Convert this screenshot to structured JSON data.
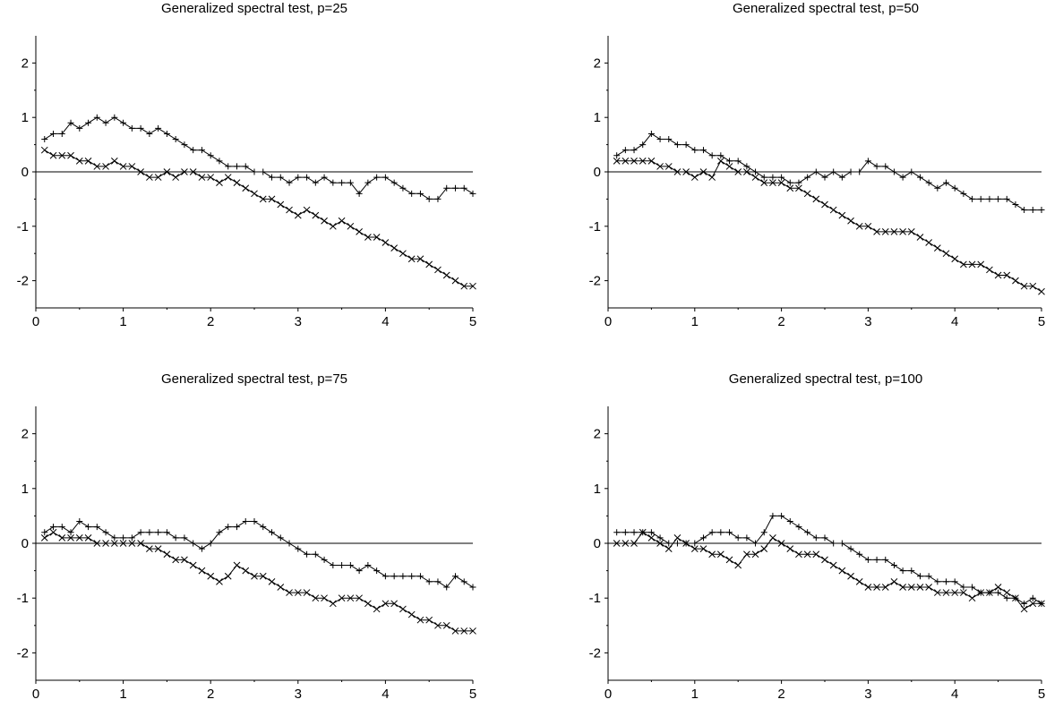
{
  "chart_data": [
    {
      "type": "line",
      "title": "Generalized spectral test, p=25",
      "xlabel": "",
      "ylabel": "",
      "xlim": [
        0,
        5
      ],
      "ylim": [
        -2.5,
        2.5
      ],
      "xticks": [
        "0",
        "1",
        "2",
        "3",
        "4",
        "5"
      ],
      "yticks": [
        "-2",
        "-1",
        "0",
        "1",
        "2"
      ],
      "reference_line_y": 0,
      "grid": false,
      "series": [
        {
          "marker": "plus",
          "x": [
            0.1,
            0.2,
            0.3,
            0.4,
            0.5,
            0.6,
            0.7,
            0.8,
            0.9,
            1.0,
            1.1,
            1.2,
            1.3,
            1.4,
            1.5,
            1.6,
            1.7,
            1.8,
            1.9,
            2.0,
            2.1,
            2.2,
            2.3,
            2.4,
            2.5,
            2.6,
            2.7,
            2.8,
            2.9,
            3.0,
            3.1,
            3.2,
            3.3,
            3.4,
            3.5,
            3.6,
            3.7,
            3.8,
            3.9,
            4.0,
            4.1,
            4.2,
            4.3,
            4.4,
            4.5,
            4.6,
            4.7,
            4.8,
            4.9,
            5.0
          ],
          "y": [
            0.6,
            0.7,
            0.7,
            0.9,
            0.8,
            0.9,
            1.0,
            0.9,
            1.0,
            0.9,
            0.8,
            0.8,
            0.7,
            0.8,
            0.7,
            0.6,
            0.5,
            0.4,
            0.4,
            0.3,
            0.2,
            0.1,
            0.1,
            0.1,
            0.0,
            0.0,
            -0.1,
            -0.1,
            -0.2,
            -0.1,
            -0.1,
            -0.2,
            -0.1,
            -0.2,
            -0.2,
            -0.2,
            -0.4,
            -0.2,
            -0.1,
            -0.1,
            -0.2,
            -0.3,
            -0.4,
            -0.4,
            -0.5,
            -0.5,
            -0.3,
            -0.3,
            -0.3,
            -0.4
          ]
        },
        {
          "marker": "cross",
          "x": [
            0.1,
            0.2,
            0.3,
            0.4,
            0.5,
            0.6,
            0.7,
            0.8,
            0.9,
            1.0,
            1.1,
            1.2,
            1.3,
            1.4,
            1.5,
            1.6,
            1.7,
            1.8,
            1.9,
            2.0,
            2.1,
            2.2,
            2.3,
            2.4,
            2.5,
            2.6,
            2.7,
            2.8,
            2.9,
            3.0,
            3.1,
            3.2,
            3.3,
            3.4,
            3.5,
            3.6,
            3.7,
            3.8,
            3.9,
            4.0,
            4.1,
            4.2,
            4.3,
            4.4,
            4.5,
            4.6,
            4.7,
            4.8,
            4.9,
            5.0
          ],
          "y": [
            0.4,
            0.3,
            0.3,
            0.3,
            0.2,
            0.2,
            0.1,
            0.1,
            0.2,
            0.1,
            0.1,
            0.0,
            -0.1,
            -0.1,
            0.0,
            -0.1,
            0.0,
            0.0,
            -0.1,
            -0.1,
            -0.2,
            -0.1,
            -0.2,
            -0.3,
            -0.4,
            -0.5,
            -0.5,
            -0.6,
            -0.7,
            -0.8,
            -0.7,
            -0.8,
            -0.9,
            -1.0,
            -0.9,
            -1.0,
            -1.1,
            -1.2,
            -1.2,
            -1.3,
            -1.4,
            -1.5,
            -1.6,
            -1.6,
            -1.7,
            -1.8,
            -1.9,
            -2.0,
            -2.1,
            -2.1
          ]
        }
      ]
    },
    {
      "type": "line",
      "title": "Generalized spectral test, p=50",
      "xlabel": "",
      "ylabel": "",
      "xlim": [
        0,
        5
      ],
      "ylim": [
        -2.5,
        2.5
      ],
      "xticks": [
        "0",
        "1",
        "2",
        "3",
        "4",
        "5"
      ],
      "yticks": [
        "-2",
        "-1",
        "0",
        "1",
        "2"
      ],
      "reference_line_y": 0,
      "grid": false,
      "series": [
        {
          "marker": "plus",
          "x": [
            0.1,
            0.2,
            0.3,
            0.4,
            0.5,
            0.6,
            0.7,
            0.8,
            0.9,
            1.0,
            1.1,
            1.2,
            1.3,
            1.4,
            1.5,
            1.6,
            1.7,
            1.8,
            1.9,
            2.0,
            2.1,
            2.2,
            2.3,
            2.4,
            2.5,
            2.6,
            2.7,
            2.8,
            2.9,
            3.0,
            3.1,
            3.2,
            3.3,
            3.4,
            3.5,
            3.6,
            3.7,
            3.8,
            3.9,
            4.0,
            4.1,
            4.2,
            4.3,
            4.4,
            4.5,
            4.6,
            4.7,
            4.8,
            4.9,
            5.0
          ],
          "y": [
            0.3,
            0.4,
            0.4,
            0.5,
            0.7,
            0.6,
            0.6,
            0.5,
            0.5,
            0.4,
            0.4,
            0.3,
            0.3,
            0.2,
            0.2,
            0.1,
            0.0,
            -0.1,
            -0.1,
            -0.1,
            -0.2,
            -0.2,
            -0.1,
            0.0,
            -0.1,
            0.0,
            -0.1,
            0.0,
            0.0,
            0.2,
            0.1,
            0.1,
            0.0,
            -0.1,
            0.0,
            -0.1,
            -0.2,
            -0.3,
            -0.2,
            -0.3,
            -0.4,
            -0.5,
            -0.5,
            -0.5,
            -0.5,
            -0.5,
            -0.6,
            -0.7,
            -0.7,
            -0.7
          ]
        },
        {
          "marker": "cross",
          "x": [
            0.1,
            0.2,
            0.3,
            0.4,
            0.5,
            0.6,
            0.7,
            0.8,
            0.9,
            1.0,
            1.1,
            1.2,
            1.3,
            1.4,
            1.5,
            1.6,
            1.7,
            1.8,
            1.9,
            2.0,
            2.1,
            2.2,
            2.3,
            2.4,
            2.5,
            2.6,
            2.7,
            2.8,
            2.9,
            3.0,
            3.1,
            3.2,
            3.3,
            3.4,
            3.5,
            3.6,
            3.7,
            3.8,
            3.9,
            4.0,
            4.1,
            4.2,
            4.3,
            4.4,
            4.5,
            4.6,
            4.7,
            4.8,
            4.9,
            5.0
          ],
          "y": [
            0.2,
            0.2,
            0.2,
            0.2,
            0.2,
            0.1,
            0.1,
            0.0,
            0.0,
            -0.1,
            0.0,
            -0.1,
            0.2,
            0.1,
            0.0,
            0.0,
            -0.1,
            -0.2,
            -0.2,
            -0.2,
            -0.3,
            -0.3,
            -0.4,
            -0.5,
            -0.6,
            -0.7,
            -0.8,
            -0.9,
            -1.0,
            -1.0,
            -1.1,
            -1.1,
            -1.1,
            -1.1,
            -1.1,
            -1.2,
            -1.3,
            -1.4,
            -1.5,
            -1.6,
            -1.7,
            -1.7,
            -1.7,
            -1.8,
            -1.9,
            -1.9,
            -2.0,
            -2.1,
            -2.1,
            -2.2
          ]
        }
      ]
    },
    {
      "type": "line",
      "title": "Generalized spectral test, p=75",
      "xlabel": "",
      "ylabel": "",
      "xlim": [
        0,
        5
      ],
      "ylim": [
        -2.5,
        2.5
      ],
      "xticks": [
        "0",
        "1",
        "2",
        "3",
        "4",
        "5"
      ],
      "yticks": [
        "-2",
        "-1",
        "0",
        "1",
        "2"
      ],
      "reference_line_y": 0,
      "grid": false,
      "series": [
        {
          "marker": "plus",
          "x": [
            0.1,
            0.2,
            0.3,
            0.4,
            0.5,
            0.6,
            0.7,
            0.8,
            0.9,
            1.0,
            1.1,
            1.2,
            1.3,
            1.4,
            1.5,
            1.6,
            1.7,
            1.8,
            1.9,
            2.0,
            2.1,
            2.2,
            2.3,
            2.4,
            2.5,
            2.6,
            2.7,
            2.8,
            2.9,
            3.0,
            3.1,
            3.2,
            3.3,
            3.4,
            3.5,
            3.6,
            3.7,
            3.8,
            3.9,
            4.0,
            4.1,
            4.2,
            4.3,
            4.4,
            4.5,
            4.6,
            4.7,
            4.8,
            4.9,
            5.0
          ],
          "y": [
            0.2,
            0.3,
            0.3,
            0.2,
            0.4,
            0.3,
            0.3,
            0.2,
            0.1,
            0.1,
            0.1,
            0.2,
            0.2,
            0.2,
            0.2,
            0.1,
            0.1,
            0.0,
            -0.1,
            0.0,
            0.2,
            0.3,
            0.3,
            0.4,
            0.4,
            0.3,
            0.2,
            0.1,
            0.0,
            -0.1,
            -0.2,
            -0.2,
            -0.3,
            -0.4,
            -0.4,
            -0.4,
            -0.5,
            -0.4,
            -0.5,
            -0.6,
            -0.6,
            -0.6,
            -0.6,
            -0.6,
            -0.7,
            -0.7,
            -0.8,
            -0.6,
            -0.7,
            -0.8
          ]
        },
        {
          "marker": "cross",
          "x": [
            0.1,
            0.2,
            0.3,
            0.4,
            0.5,
            0.6,
            0.7,
            0.8,
            0.9,
            1.0,
            1.1,
            1.2,
            1.3,
            1.4,
            1.5,
            1.6,
            1.7,
            1.8,
            1.9,
            2.0,
            2.1,
            2.2,
            2.3,
            2.4,
            2.5,
            2.6,
            2.7,
            2.8,
            2.9,
            3.0,
            3.1,
            3.2,
            3.3,
            3.4,
            3.5,
            3.6,
            3.7,
            3.8,
            3.9,
            4.0,
            4.1,
            4.2,
            4.3,
            4.4,
            4.5,
            4.6,
            4.7,
            4.8,
            4.9,
            5.0
          ],
          "y": [
            0.1,
            0.2,
            0.1,
            0.1,
            0.1,
            0.1,
            0.0,
            0.0,
            0.0,
            0.0,
            0.0,
            0.0,
            -0.1,
            -0.1,
            -0.2,
            -0.3,
            -0.3,
            -0.4,
            -0.5,
            -0.6,
            -0.7,
            -0.6,
            -0.4,
            -0.5,
            -0.6,
            -0.6,
            -0.7,
            -0.8,
            -0.9,
            -0.9,
            -0.9,
            -1.0,
            -1.0,
            -1.1,
            -1.0,
            -1.0,
            -1.0,
            -1.1,
            -1.2,
            -1.1,
            -1.1,
            -1.2,
            -1.3,
            -1.4,
            -1.4,
            -1.5,
            -1.5,
            -1.6,
            -1.6,
            -1.6
          ]
        }
      ]
    },
    {
      "type": "line",
      "title": "Generalized spectral test, p=100",
      "xlabel": "",
      "ylabel": "",
      "xlim": [
        0,
        5
      ],
      "ylim": [
        -2.5,
        2.5
      ],
      "xticks": [
        "0",
        "1",
        "2",
        "3",
        "4",
        "5"
      ],
      "yticks": [
        "-2",
        "-1",
        "0",
        "1",
        "2"
      ],
      "reference_line_y": 0,
      "grid": false,
      "series": [
        {
          "marker": "plus",
          "x": [
            0.1,
            0.2,
            0.3,
            0.4,
            0.5,
            0.6,
            0.7,
            0.8,
            0.9,
            1.0,
            1.1,
            1.2,
            1.3,
            1.4,
            1.5,
            1.6,
            1.7,
            1.8,
            1.9,
            2.0,
            2.1,
            2.2,
            2.3,
            2.4,
            2.5,
            2.6,
            2.7,
            2.8,
            2.9,
            3.0,
            3.1,
            3.2,
            3.3,
            3.4,
            3.5,
            3.6,
            3.7,
            3.8,
            3.9,
            4.0,
            4.1,
            4.2,
            4.3,
            4.4,
            4.5,
            4.6,
            4.7,
            4.8,
            4.9,
            5.0
          ],
          "y": [
            0.2,
            0.2,
            0.2,
            0.2,
            0.2,
            0.1,
            0.0,
            0.0,
            0.0,
            0.0,
            0.1,
            0.2,
            0.2,
            0.2,
            0.1,
            0.1,
            0.0,
            0.2,
            0.5,
            0.5,
            0.4,
            0.3,
            0.2,
            0.1,
            0.1,
            0.0,
            0.0,
            -0.1,
            -0.2,
            -0.3,
            -0.3,
            -0.3,
            -0.4,
            -0.5,
            -0.5,
            -0.6,
            -0.6,
            -0.7,
            -0.7,
            -0.7,
            -0.8,
            -0.8,
            -0.9,
            -0.9,
            -0.9,
            -1.0,
            -1.0,
            -1.1,
            -1.0,
            -1.1
          ]
        },
        {
          "marker": "cross",
          "x": [
            0.1,
            0.2,
            0.3,
            0.4,
            0.5,
            0.6,
            0.7,
            0.8,
            0.9,
            1.0,
            1.1,
            1.2,
            1.3,
            1.4,
            1.5,
            1.6,
            1.7,
            1.8,
            1.9,
            2.0,
            2.1,
            2.2,
            2.3,
            2.4,
            2.5,
            2.6,
            2.7,
            2.8,
            2.9,
            3.0,
            3.1,
            3.2,
            3.3,
            3.4,
            3.5,
            3.6,
            3.7,
            3.8,
            3.9,
            4.0,
            4.1,
            4.2,
            4.3,
            4.4,
            4.5,
            4.6,
            4.7,
            4.8,
            4.9,
            5.0
          ],
          "y": [
            0.0,
            0.0,
            0.0,
            0.2,
            0.1,
            0.0,
            -0.1,
            0.1,
            0.0,
            -0.1,
            -0.1,
            -0.2,
            -0.2,
            -0.3,
            -0.4,
            -0.2,
            -0.2,
            -0.1,
            0.1,
            0.0,
            -0.1,
            -0.2,
            -0.2,
            -0.2,
            -0.3,
            -0.4,
            -0.5,
            -0.6,
            -0.7,
            -0.8,
            -0.8,
            -0.8,
            -0.7,
            -0.8,
            -0.8,
            -0.8,
            -0.8,
            -0.9,
            -0.9,
            -0.9,
            -0.9,
            -1.0,
            -0.9,
            -0.9,
            -0.8,
            -0.9,
            -1.0,
            -1.2,
            -1.1,
            -1.1
          ]
        }
      ]
    }
  ]
}
